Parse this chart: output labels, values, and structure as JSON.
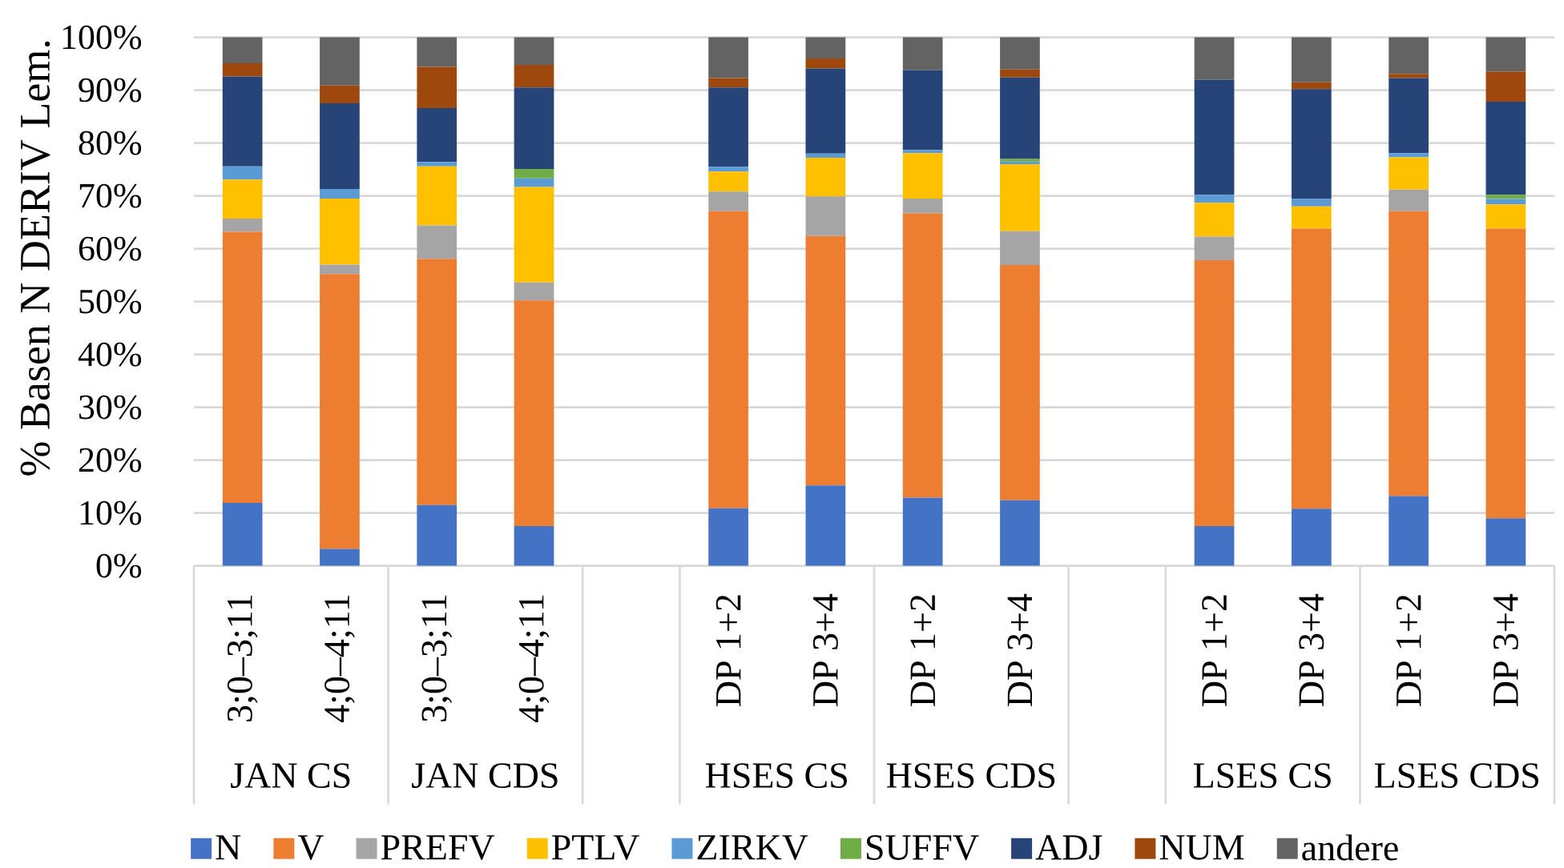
{
  "chart_data": {
    "type": "bar",
    "stacked": true,
    "ylabel": "% Basen N DERIV Lem.",
    "categories": [
      "3;0–3;11",
      "4;0–4;11",
      "3;0–3;11",
      "4;0–4;11",
      null,
      "DP 1+2",
      "DP 3+4",
      "DP 1+2",
      "DP 3+4",
      null,
      "DP 1+2",
      "DP 3+4",
      "DP 1+2",
      "DP 3+4"
    ],
    "annotations": [
      "JAN CS",
      "JAN CDS",
      "HSES CS",
      "HSES CDS",
      "LSES CS",
      "LSES CDS"
    ],
    "series": [
      {
        "name": "N",
        "color": "#4472c4",
        "values": [
          11.9,
          3.2,
          11.5,
          7.5,
          null,
          10.9,
          15.2,
          12.9,
          12.4,
          null,
          7.5,
          10.8,
          13.2,
          9.0
        ]
      },
      {
        "name": "V",
        "color": "#ed7d31",
        "values": [
          51.3,
          52.0,
          46.6,
          42.7,
          null,
          56.2,
          47.2,
          53.8,
          44.5,
          null,
          50.3,
          53.0,
          53.9,
          54.8
        ]
      },
      {
        "name": "PREFV",
        "color": "#a5a5a5",
        "values": [
          2.5,
          1.8,
          6.3,
          3.4,
          null,
          3.7,
          7.5,
          2.8,
          6.4,
          null,
          4.5,
          0,
          4.1,
          0
        ]
      },
      {
        "name": "PTLV",
        "color": "#ffc000",
        "values": [
          7.4,
          12.5,
          11.2,
          18.1,
          null,
          3.8,
          7.3,
          8.6,
          12.7,
          null,
          6.4,
          4.2,
          6.1,
          4.6
        ]
      },
      {
        "name": "ZIRKV",
        "color": "#5b9bd5",
        "values": [
          2.5,
          1.8,
          0.8,
          1.6,
          null,
          0.9,
          0.8,
          0.6,
          0.5,
          null,
          1.5,
          1.4,
          0.8,
          1.0
        ]
      },
      {
        "name": "SUFFV",
        "color": "#70ad47",
        "values": [
          0,
          0,
          0,
          1.8,
          null,
          0,
          0,
          0,
          0.5,
          null,
          0,
          0,
          0,
          0.8
        ]
      },
      {
        "name": "ADJ",
        "color": "#264478",
        "values": [
          17.0,
          16.2,
          10.2,
          15.4,
          null,
          15.0,
          16.1,
          15.1,
          15.4,
          null,
          21.8,
          20.8,
          14.2,
          17.6
        ]
      },
      {
        "name": "NUM",
        "color": "#9e480e",
        "values": [
          2.5,
          3.4,
          7.8,
          4.3,
          null,
          1.8,
          1.9,
          0,
          1.5,
          null,
          0,
          1.3,
          0.8,
          5.7
        ]
      },
      {
        "name": "andere",
        "color": "#636363",
        "values": [
          4.9,
          9.1,
          5.6,
          5.2,
          null,
          7.7,
          4.0,
          6.2,
          6.1,
          null,
          8.0,
          8.5,
          6.9,
          6.5
        ]
      }
    ],
    "ylim": [
      0,
      100
    ],
    "yticks": [
      {
        "value": 0,
        "label": "0%"
      },
      {
        "value": 10,
        "label": "10%"
      },
      {
        "value": 20,
        "label": "20%"
      },
      {
        "value": 30,
        "label": "30%"
      },
      {
        "value": 40,
        "label": "40%"
      },
      {
        "value": 50,
        "label": "50%"
      },
      {
        "value": 60,
        "label": "60%"
      },
      {
        "value": 70,
        "label": "70%"
      },
      {
        "value": 80,
        "label": "80%"
      },
      {
        "value": 90,
        "label": "90%"
      },
      {
        "value": 100,
        "label": "100%"
      }
    ],
    "grid": "y",
    "legend": "bottom"
  }
}
